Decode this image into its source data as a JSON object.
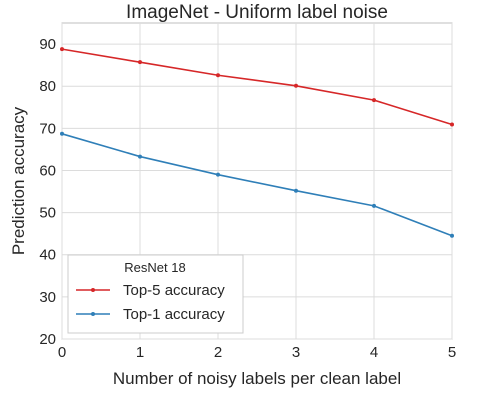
{
  "chart_data": {
    "type": "line",
    "title": "ImageNet - Uniform label noise",
    "xlabel": "Number of noisy labels per clean label",
    "ylabel": "Prediction accuracy",
    "x": [
      0,
      1,
      2,
      3,
      4,
      5
    ],
    "xlim": [
      0,
      5
    ],
    "ylim": [
      20,
      95
    ],
    "xticks": [
      0,
      1,
      2,
      3,
      4,
      5
    ],
    "yticks": [
      20,
      30,
      40,
      50,
      60,
      70,
      80,
      90
    ],
    "grid": true,
    "legend": {
      "title": "ResNet 18",
      "placement": "bottom-left"
    },
    "series": [
      {
        "name": "Top-5 accuracy",
        "color": "#d62728",
        "values": [
          88.8,
          85.7,
          82.6,
          80.1,
          76.7,
          70.9
        ]
      },
      {
        "name": "Top-1 accuracy",
        "color": "#2f7fb8",
        "values": [
          68.7,
          63.3,
          59.0,
          55.2,
          51.6,
          44.5
        ]
      }
    ]
  }
}
